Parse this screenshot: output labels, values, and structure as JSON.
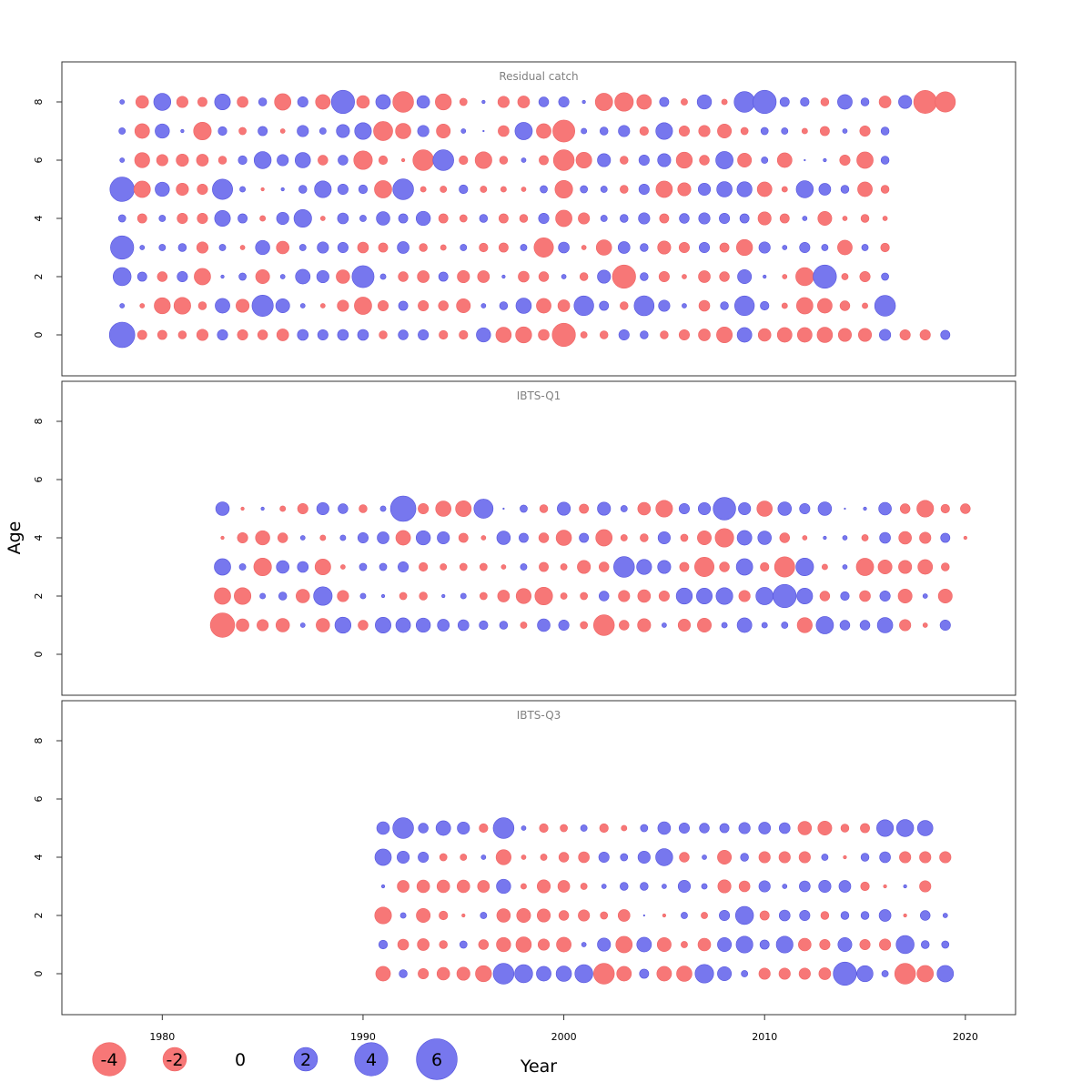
{
  "chart_data": {
    "type": "bubble-residuals",
    "xlabel": "Year",
    "ylabel": "Age",
    "xlim": [
      1975,
      2022.5
    ],
    "ylim": [
      -1.4,
      9.4
    ],
    "x_ticks": [
      1980,
      1990,
      2000,
      2010,
      2020
    ],
    "y_ticks": [
      0,
      2,
      4,
      6,
      8
    ],
    "colors": {
      "positive": "#7777EE",
      "negative": "#F77777"
    },
    "legend": {
      "values": [
        -4,
        -2,
        0,
        2,
        4,
        6
      ],
      "labels": [
        "-4",
        "-2",
        "0",
        "2",
        "4",
        "6"
      ]
    },
    "panels": [
      {
        "title": "Residual catch",
        "start_year": 1978,
        "ages": [
          0,
          1,
          2,
          3,
          4,
          5,
          6,
          7,
          8
        ],
        "residuals": [
          [
            6.0,
            -0.8,
            -0.8,
            -0.6,
            -1.2,
            1.0,
            -1.0,
            -0.9,
            -1.3,
            1.1,
            1.0,
            1.1,
            1.1,
            -0.6,
            0.9,
            1.0,
            -0.7,
            -0.7,
            1.9,
            -2.2,
            -2.4,
            -1.1,
            -5.0,
            -0.4,
            -0.6,
            1.0,
            0.6,
            -0.6,
            -1.0,
            -1.3,
            -2.3,
            2.0,
            -1.5,
            -2.0,
            -2.0,
            -2.2,
            -1.6,
            -1.6,
            1.2,
            -1.0,
            -1.0,
            0.8
          ],
          [
            0.2,
            -0.2,
            -2.4,
            -2.6,
            -0.6,
            2.0,
            -1.6,
            4.2,
            1.8,
            0.2,
            -0.2,
            -1.2,
            -2.8,
            -1.0,
            0.8,
            -1.0,
            -0.9,
            -1.8,
            0.2,
            0.6,
            2.2,
            -2.0,
            -1.3,
            3.6,
            0.8,
            -0.6,
            3.7,
            1.2,
            0.2,
            -1.1,
            0.6,
            3.6,
            0.7,
            -0.3,
            -2.5,
            -2.0,
            -0.9,
            -0.3,
            4.0
          ],
          [
            3.0,
            0.8,
            -0.9,
            1.0,
            -2.5,
            0.1,
            0.5,
            -1.8,
            0.2,
            2.0,
            1.4,
            -1.7,
            4.5,
            0.3,
            -0.9,
            -1.3,
            0.8,
            -1.4,
            -1.3,
            0.1,
            -1.1,
            -0.9,
            0.2,
            -0.6,
            1.6,
            -5.0,
            0.6,
            -1.0,
            -0.2,
            -1.3,
            -0.9,
            1.8,
            0.1,
            -0.2,
            -3.0,
            5.0,
            -0.4,
            -1.0,
            0.5
          ],
          [
            5.0,
            0.2,
            0.4,
            0.6,
            -1.2,
            0.4,
            -0.2,
            1.9,
            -1.5,
            0.4,
            1.2,
            1.0,
            -1.1,
            -0.8,
            1.3,
            -0.6,
            -0.3,
            0.4,
            -0.7,
            -0.8,
            0.4,
            -3.5,
            1.1,
            -0.2,
            -2.2,
            1.3,
            0.6,
            -1.6,
            -1.0,
            1.0,
            -0.8,
            -2.4,
            1.2,
            0.2,
            1.0,
            0.4,
            -2.0,
            0.4,
            -0.7
          ],
          [
            0.5,
            -0.8,
            0.4,
            -1.0,
            -1.0,
            2.3,
            0.8,
            -0.3,
            1.4,
            2.9,
            -0.2,
            1.1,
            0.4,
            1.7,
            0.8,
            1.9,
            -0.8,
            -0.5,
            0.6,
            -0.8,
            -0.6,
            1.0,
            -2.5,
            -1.2,
            0.4,
            0.6,
            1.2,
            -0.8,
            0.9,
            1.2,
            1.0,
            0.8,
            -1.6,
            -0.8,
            0.2,
            -1.8,
            -0.2,
            -0.6,
            -0.2
          ],
          [
            5.5,
            -2.5,
            1.9,
            -1.4,
            -1.0,
            3.8,
            0.3,
            -0.1,
            0.1,
            0.6,
            2.6,
            1.0,
            0.7,
            -2.8,
            4.0,
            -0.3,
            -0.4,
            0.7,
            -0.4,
            -0.3,
            -0.2,
            0.5,
            -2.9,
            0.5,
            0.4,
            -0.6,
            1.0,
            -2.5,
            -1.6,
            1.4,
            2.2,
            2.1,
            -2.0,
            -0.3,
            2.7,
            1.3,
            0.6,
            -2.0,
            -0.6
          ],
          [
            0.2,
            -2.1,
            -1.2,
            -1.4,
            -1.3,
            -0.6,
            0.7,
            2.7,
            1.2,
            2.2,
            -0.9,
            0.9,
            -3.2,
            -0.7,
            -0.1,
            -4.0,
            4.0,
            -0.7,
            -2.6,
            -0.6,
            0.2,
            -0.8,
            -4.0,
            -2.3,
            1.6,
            -0.6,
            1.0,
            1.6,
            -2.4,
            -0.9,
            2.8,
            -1.8,
            0.4,
            -2.0,
            0.0,
            0.1,
            -1.0,
            -2.5,
            0.6
          ],
          [
            0.4,
            -2.0,
            1.9,
            0.1,
            -2.9,
            0.7,
            -0.5,
            0.8,
            -0.2,
            1.2,
            0.4,
            1.6,
            2.6,
            -3.4,
            -2.2,
            1.2,
            -1.8,
            0.2,
            0.0,
            -1.1,
            2.8,
            -2.0,
            -4.5,
            0.3,
            0.6,
            1.2,
            -0.7,
            2.6,
            -1.0,
            -1.2,
            -1.8,
            -0.5,
            0.5,
            0.4,
            -0.3,
            -0.8,
            0.2,
            -1.0,
            0.6
          ],
          [
            0.2,
            -1.5,
            2.7,
            -1.2,
            -0.8,
            2.3,
            -1.1,
            0.6,
            -2.5,
            1.0,
            -2.0,
            5.0,
            -1.5,
            2.0,
            -4.0,
            1.5,
            -2.4,
            -0.5,
            0.1,
            -1.2,
            -1.3,
            0.9,
            1.0,
            0.1,
            -2.8,
            -3.2,
            -2.0,
            0.8,
            -0.4,
            1.9,
            -0.3,
            4.0,
            5.0,
            0.8,
            0.7,
            -0.6,
            2.0,
            0.6,
            -1.3,
            1.6,
            -4.9,
            -3.8
          ]
        ]
      },
      {
        "title": "IBTS-Q1",
        "start_year": 1983,
        "ages": [
          1,
          2,
          3,
          4,
          5
        ],
        "residuals": [
          [
            -5.5,
            -1.5,
            -1.2,
            -1.7,
            0.2,
            -1.7,
            2.4,
            -0.9,
            2.3,
            2.0,
            1.9,
            1.3,
            1.1,
            0.7,
            0.6,
            -0.4,
            1.5,
            1.0,
            -0.5,
            -4.0,
            -0.9,
            -1.6,
            0.2,
            -1.4,
            -1.8,
            0.3,
            2.0,
            0.3,
            0.4,
            -2.1,
            2.8,
            0.9,
            0.9,
            2.2,
            -1.2,
            -0.2,
            1.0
          ],
          [
            -2.5,
            -2.6,
            0.3,
            0.6,
            -1.7,
            3.2,
            -1.2,
            0.3,
            0.1,
            -0.5,
            -0.6,
            0.1,
            0.3,
            -0.5,
            -1.3,
            -2.1,
            -2.9,
            -0.4,
            -0.5,
            0.9,
            -1.2,
            -1.5,
            -1.0,
            2.4,
            2.3,
            2.6,
            -1.2,
            2.8,
            5.0,
            2.3,
            -0.9,
            0.7,
            -1.1,
            1.0,
            -1.8,
            0.2,
            -1.8
          ],
          [
            2.5,
            0.4,
            -2.9,
            1.5,
            1.1,
            -2.3,
            -0.2,
            0.5,
            0.5,
            1.0,
            -0.7,
            -0.4,
            -0.5,
            -0.5,
            -0.2,
            0.4,
            -0.8,
            -0.4,
            -1.6,
            -0.9,
            4.0,
            2.1,
            1.6,
            -0.8,
            -3.5,
            -0.9,
            2.5,
            -0.7,
            -3.8,
            2.9,
            -0.3,
            0.2,
            -2.8,
            -1.8,
            -1.6,
            -2.0,
            -0.6
          ],
          [
            -0.1,
            -1.0,
            -1.9,
            -0.9,
            0.2,
            -0.3,
            0.3,
            1.0,
            1.3,
            -2.0,
            1.9,
            1.4,
            -0.8,
            -0.2,
            1.7,
            0.8,
            -0.9,
            -2.2,
            0.8,
            -2.5,
            -0.4,
            -0.6,
            1.4,
            -0.5,
            -1.8,
            -3.2,
            2.0,
            1.7,
            -0.9,
            -0.2,
            0.1,
            0.2,
            -0.4,
            1.1,
            -1.5,
            -1.2,
            0.8,
            -0.1
          ],
          [
            1.7,
            -0.1,
            0.1,
            -0.3,
            -1.0,
            1.4,
            0.9,
            -0.6,
            0.3,
            6.0,
            -1.0,
            -2.2,
            -2.3,
            3.4,
            0.0,
            0.5,
            -0.6,
            1.6,
            -0.8,
            1.6,
            0.4,
            -1.5,
            -2.6,
            1.0,
            1.4,
            4.7,
            1.4,
            -2.2,
            1.7,
            1.0,
            1.7,
            0.0,
            0.1,
            1.5,
            -0.9,
            -2.6,
            -0.7,
            -0.9
          ]
        ]
      },
      {
        "title": "IBTS-Q3",
        "start_year": 1991,
        "ages": [
          0,
          1,
          2,
          3,
          4,
          5
        ],
        "residuals": [
          [
            -2.0,
            0.6,
            -1.0,
            -1.5,
            -1.6,
            -2.4,
            4.0,
            3.0,
            2.0,
            2.2,
            3.0,
            -4.0,
            -2.0,
            0.8,
            -2.0,
            -2.2,
            3.2,
            1.8,
            0.4,
            -1.2,
            -1.2,
            -1.2,
            -1.3,
            5.0,
            2.4,
            0.4,
            -4.0,
            -2.5,
            2.5
          ],
          [
            0.7,
            -1.1,
            -1.3,
            -0.6,
            0.5,
            -0.9,
            -1.9,
            -2.2,
            -1.2,
            -2.0,
            0.2,
            1.6,
            -2.5,
            2.0,
            -1.8,
            -0.4,
            -1.5,
            1.8,
            2.6,
            0.8,
            2.6,
            -1.5,
            -1.0,
            1.8,
            -1.0,
            -1.2,
            3.0,
            0.6,
            0.5
          ],
          [
            -2.6,
            0.3,
            -1.8,
            -0.7,
            -0.1,
            0.4,
            -1.7,
            -1.8,
            -1.6,
            -0.9,
            -1.2,
            -0.5,
            -1.3,
            0.0,
            -0.1,
            0.4,
            -0.4,
            1.0,
            3.0,
            -0.8,
            1.1,
            1.0,
            -0.6,
            0.6,
            0.6,
            1.3,
            -0.1,
            0.9,
            0.2
          ],
          [
            0.1,
            -1.3,
            -1.5,
            -1.5,
            -1.5,
            -1.3,
            1.9,
            -0.3,
            -1.6,
            -1.3,
            -0.4,
            0.2,
            0.6,
            0.6,
            0.2,
            1.4,
            0.3,
            -1.6,
            -1.1,
            1.2,
            0.2,
            1.1,
            1.4,
            1.3,
            -0.7,
            -0.1,
            0.1,
            -1.2
          ],
          [
            2.5,
            1.4,
            1.0,
            -0.5,
            -0.4,
            0.2,
            -2.1,
            -0.2,
            -0.4,
            -0.9,
            -1.1,
            1.0,
            0.5,
            1.4,
            2.7,
            -0.9,
            0.2,
            -1.8,
            0.6,
            -1.2,
            -1.2,
            -1.2,
            0.4,
            -0.1,
            0.6,
            1.1,
            -1.2,
            -1.2,
            -1.2
          ],
          [
            1.5,
            4.0,
            0.9,
            2.0,
            1.4,
            -0.7,
            4.0,
            0.2,
            -0.7,
            -0.5,
            0.4,
            -0.7,
            -0.3,
            0.5,
            1.5,
            1.0,
            0.9,
            0.8,
            1.2,
            1.3,
            1.1,
            -1.7,
            -1.8,
            -0.6,
            -0.8,
            2.6,
            2.7,
            2.2
          ]
        ]
      }
    ]
  }
}
